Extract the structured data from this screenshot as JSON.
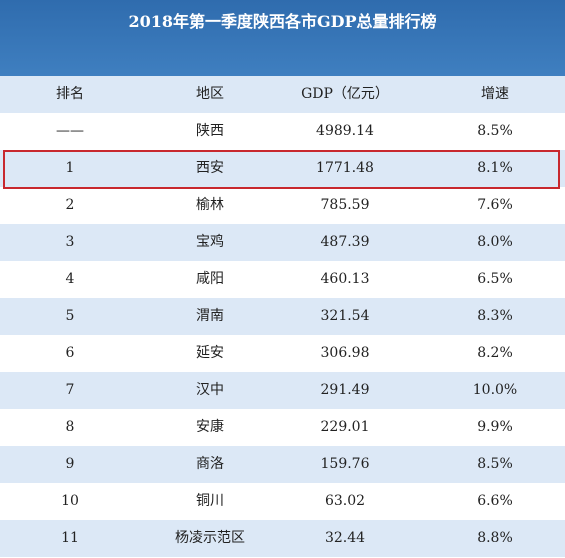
{
  "header": {
    "title": "2018年第一季度陕西各市GDP总量排行榜"
  },
  "table": {
    "columns": [
      "排名",
      "地区",
      "GDP（亿元）",
      "增速"
    ],
    "rows": [
      [
        "——",
        "陕西",
        "4989.14",
        "8.5%"
      ],
      [
        "1",
        "西安",
        "1771.48",
        "8.1%"
      ],
      [
        "2",
        "榆林",
        "785.59",
        "7.6%"
      ],
      [
        "3",
        "宝鸡",
        "487.39",
        "8.0%"
      ],
      [
        "4",
        "咸阳",
        "460.13",
        "6.5%"
      ],
      [
        "5",
        "渭南",
        "321.54",
        "8.3%"
      ],
      [
        "6",
        "延安",
        "306.98",
        "8.2%"
      ],
      [
        "7",
        "汉中",
        "291.49",
        "10.0%"
      ],
      [
        "8",
        "安康",
        "229.01",
        "9.9%"
      ],
      [
        "9",
        "商洛",
        "159.76",
        "8.5%"
      ],
      [
        "10",
        "铜川",
        "63.02",
        "6.6%"
      ],
      [
        "11",
        "杨凌示范区",
        "32.44",
        "8.8%"
      ]
    ]
  }
}
